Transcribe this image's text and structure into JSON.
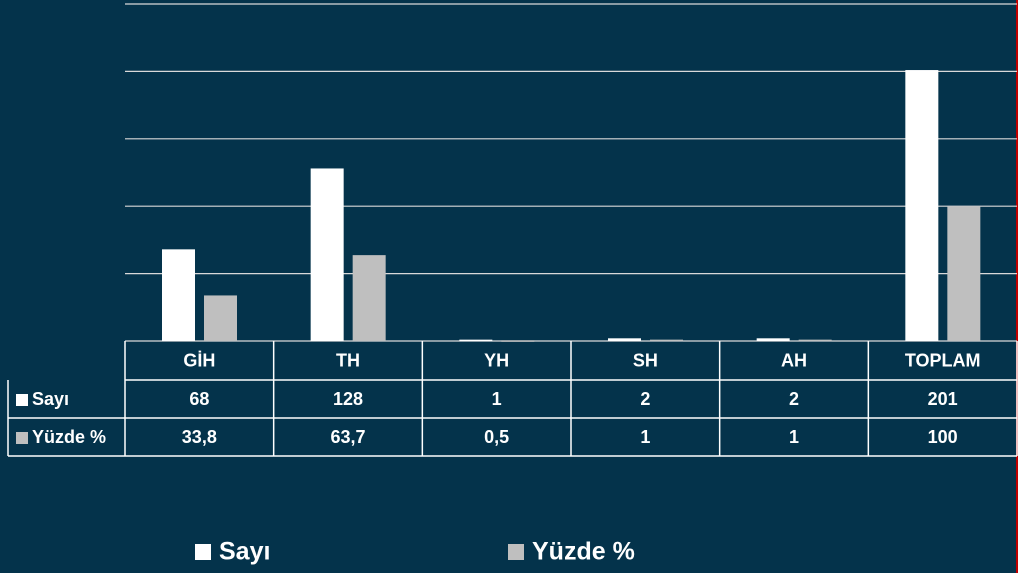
{
  "chart_data": {
    "type": "bar",
    "categories": [
      "GİH",
      "TH",
      "YH",
      "SH",
      "AH",
      "TOPLAM"
    ],
    "series": [
      {
        "name": "Sayı",
        "color": "#ffffff",
        "values": [
          68,
          128,
          1,
          2,
          2,
          201
        ]
      },
      {
        "name": "Yüzde %",
        "color": "#bfbfbf",
        "values": [
          33.8,
          63.7,
          0.5,
          1,
          1,
          100
        ],
        "value_labels": [
          "33,8",
          "63,7",
          "0,5",
          "1",
          "1",
          "100"
        ]
      }
    ],
    "ylim": [
      0,
      250
    ],
    "yticks": [
      0,
      50,
      100,
      150,
      200,
      250
    ],
    "grid": true
  }
}
